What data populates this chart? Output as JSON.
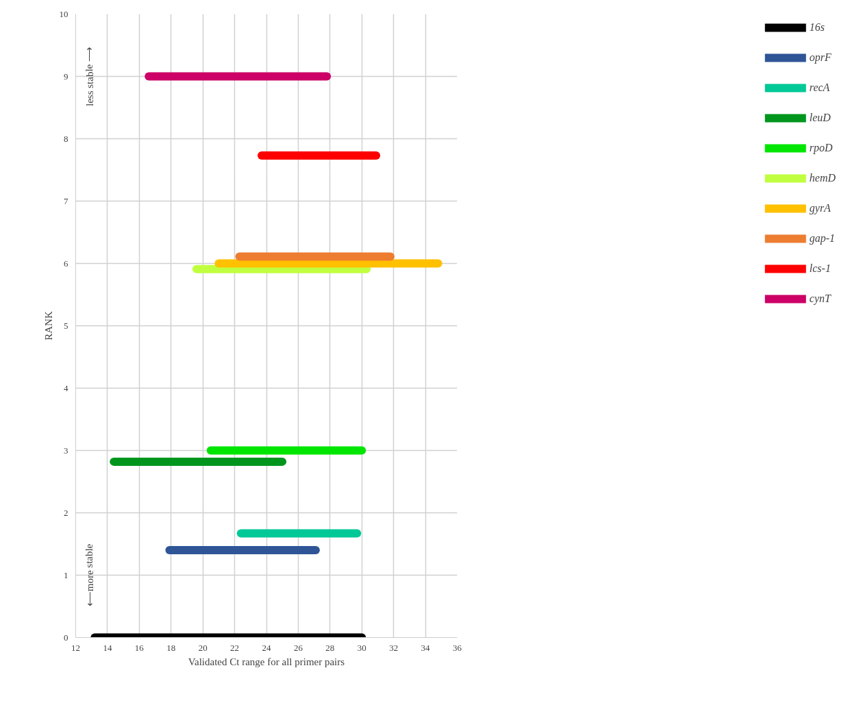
{
  "chart_data": {
    "type": "line",
    "xlabel": "Validated Ct range for all primer pairs",
    "ylabel": "RANK",
    "annotations": [
      "less stable ⟶",
      "⟵more stable"
    ],
    "xlim": [
      12,
      36
    ],
    "xticks": [
      12,
      14,
      16,
      18,
      20,
      22,
      24,
      26,
      28,
      30,
      32,
      34,
      36
    ],
    "ylim": [
      0,
      10
    ],
    "yticks": [
      0,
      1,
      2,
      3,
      4,
      5,
      6,
      7,
      8,
      9,
      10
    ],
    "grid": true,
    "legend": "right",
    "marker": "none",
    "line_style": "solid",
    "series": [
      {
        "name": "16s",
        "color": "#000000",
        "x": [
          13.2,
          30.0
        ],
        "values": [
          0,
          0
        ]
      },
      {
        "name": "oprF",
        "color": "#2f5597",
        "x": [
          17.9,
          27.1
        ],
        "values": [
          1.4,
          1.4
        ]
      },
      {
        "name": "recA",
        "color": "#00c896",
        "x": [
          22.4,
          29.7
        ],
        "values": [
          1.67,
          1.67
        ]
      },
      {
        "name": "leuD",
        "color": "#00961e",
        "x": [
          14.4,
          25.0
        ],
        "values": [
          2.82,
          2.82
        ]
      },
      {
        "name": "rpoD",
        "color": "#00e600",
        "x": [
          20.5,
          30.0
        ],
        "values": [
          3.0,
          3.0
        ]
      },
      {
        "name": "hemD",
        "color": "#c0ff40",
        "x": [
          19.6,
          30.3
        ],
        "values": [
          5.91,
          5.91
        ]
      },
      {
        "name": "gyrA",
        "color": "#ffc000",
        "x": [
          21.0,
          34.8
        ],
        "values": [
          6.0,
          6.0
        ]
      },
      {
        "name": "gap-1",
        "color": "#ed7d31",
        "x": [
          22.3,
          31.8
        ],
        "values": [
          6.11,
          6.11
        ]
      },
      {
        "name": "lcs-1",
        "color": "#ff0000",
        "x": [
          23.7,
          30.9
        ],
        "values": [
          7.73,
          7.73
        ]
      },
      {
        "name": "cynT",
        "color": "#cc0066",
        "x": [
          16.6,
          27.8
        ],
        "values": [
          9.0,
          9.0
        ]
      }
    ]
  }
}
